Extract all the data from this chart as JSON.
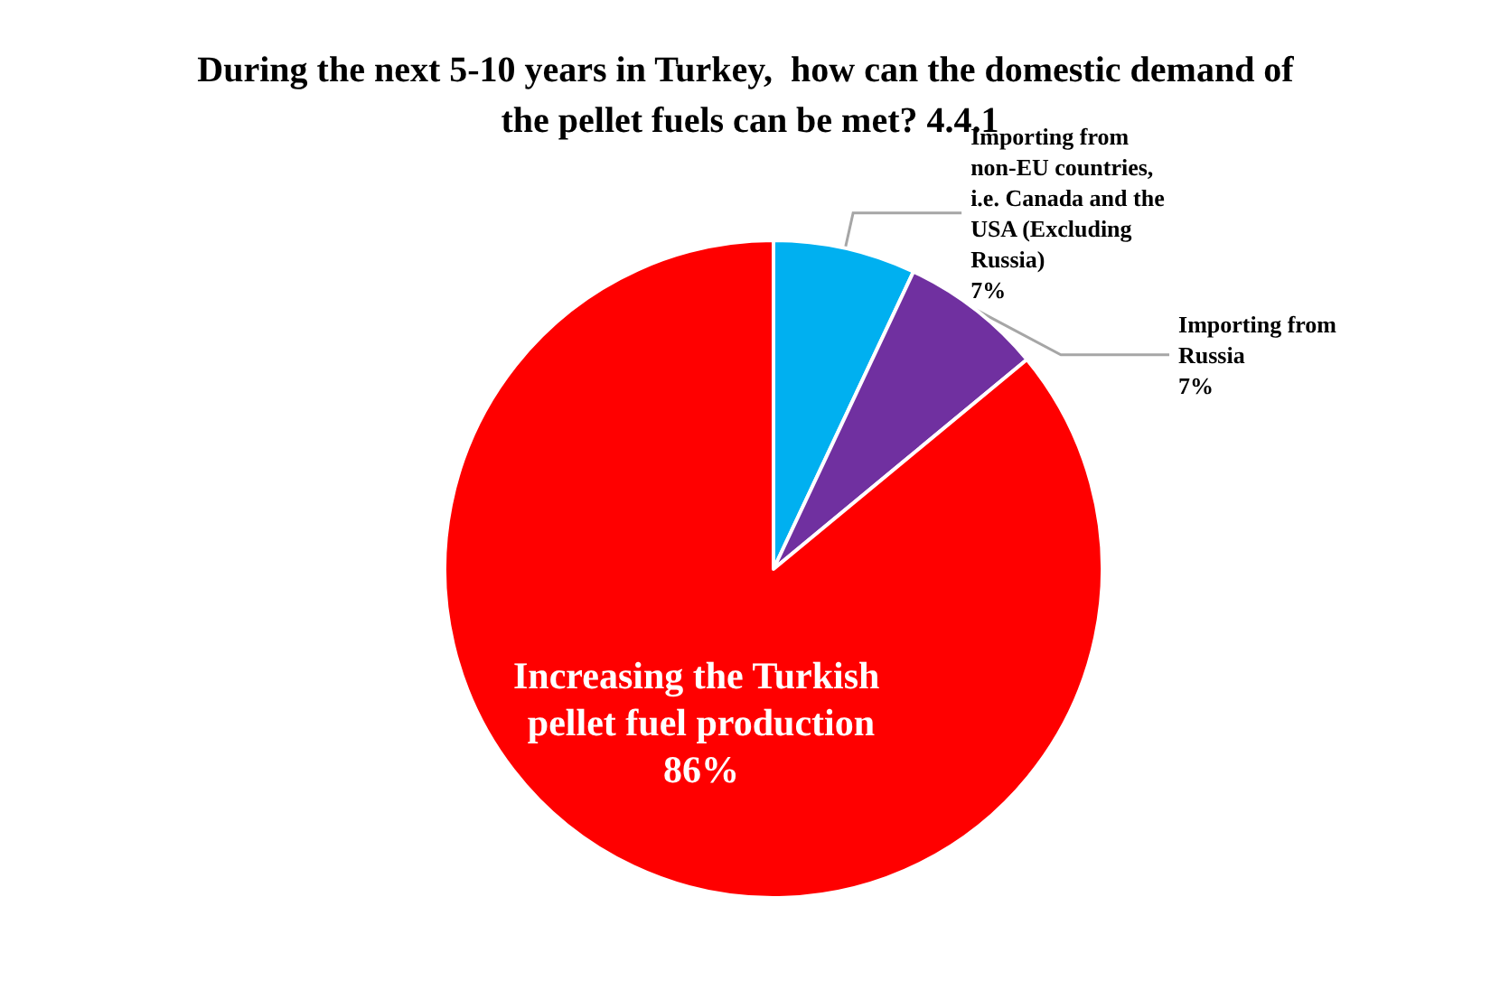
{
  "chart_data": {
    "type": "pie",
    "title": "During the next 5-10 years in Turkey,  how can the domestic demand of the pellet fuels can be met? 4.4.1",
    "categories": [
      "Importing from non-EU countries, i.e. Canada and the USA (Excluding Russia)",
      "Importing from Russia",
      "Increasing the Turkish pellet fuel production"
    ],
    "values": [
      7,
      7,
      86
    ],
    "value_labels": [
      "7%",
      "7%",
      "86%"
    ],
    "colors": [
      "#00b0f0",
      "#7030a0",
      "#ff0000"
    ],
    "legend": false
  }
}
